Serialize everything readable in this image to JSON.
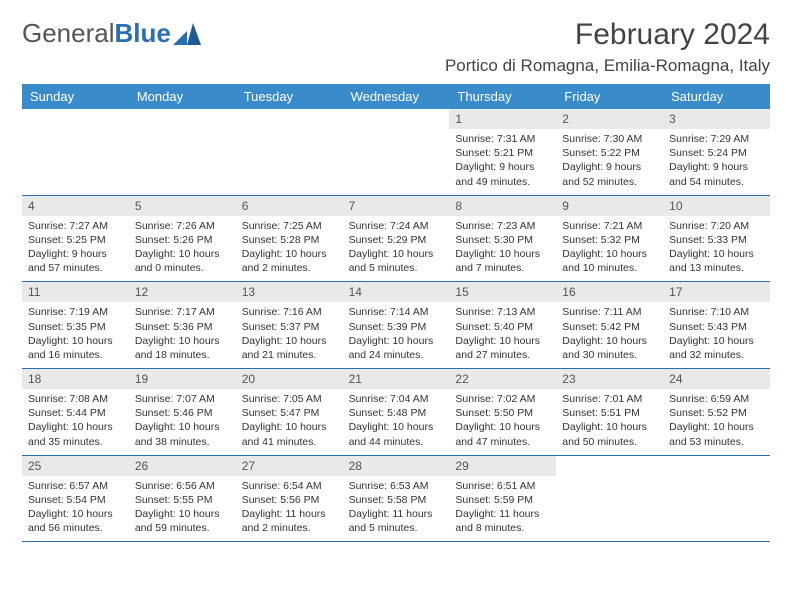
{
  "logo": {
    "word1": "General",
    "word2": "Blue"
  },
  "header": {
    "month_title": "February 2024",
    "location": "Portico di Romagna, Emilia-Romagna, Italy"
  },
  "colors": {
    "header_bg": "#3a8bc9",
    "rule": "#2a6fb5",
    "daynum_bg": "#e9e9e9"
  },
  "day_names": [
    "Sunday",
    "Monday",
    "Tuesday",
    "Wednesday",
    "Thursday",
    "Friday",
    "Saturday"
  ],
  "weeks": [
    [
      {
        "n": "",
        "sr": "",
        "ss": "",
        "dl1": "",
        "dl2": ""
      },
      {
        "n": "",
        "sr": "",
        "ss": "",
        "dl1": "",
        "dl2": ""
      },
      {
        "n": "",
        "sr": "",
        "ss": "",
        "dl1": "",
        "dl2": ""
      },
      {
        "n": "",
        "sr": "",
        "ss": "",
        "dl1": "",
        "dl2": ""
      },
      {
        "n": "1",
        "sr": "Sunrise: 7:31 AM",
        "ss": "Sunset: 5:21 PM",
        "dl1": "Daylight: 9 hours",
        "dl2": "and 49 minutes."
      },
      {
        "n": "2",
        "sr": "Sunrise: 7:30 AM",
        "ss": "Sunset: 5:22 PM",
        "dl1": "Daylight: 9 hours",
        "dl2": "and 52 minutes."
      },
      {
        "n": "3",
        "sr": "Sunrise: 7:29 AM",
        "ss": "Sunset: 5:24 PM",
        "dl1": "Daylight: 9 hours",
        "dl2": "and 54 minutes."
      }
    ],
    [
      {
        "n": "4",
        "sr": "Sunrise: 7:27 AM",
        "ss": "Sunset: 5:25 PM",
        "dl1": "Daylight: 9 hours",
        "dl2": "and 57 minutes."
      },
      {
        "n": "5",
        "sr": "Sunrise: 7:26 AM",
        "ss": "Sunset: 5:26 PM",
        "dl1": "Daylight: 10 hours",
        "dl2": "and 0 minutes."
      },
      {
        "n": "6",
        "sr": "Sunrise: 7:25 AM",
        "ss": "Sunset: 5:28 PM",
        "dl1": "Daylight: 10 hours",
        "dl2": "and 2 minutes."
      },
      {
        "n": "7",
        "sr": "Sunrise: 7:24 AM",
        "ss": "Sunset: 5:29 PM",
        "dl1": "Daylight: 10 hours",
        "dl2": "and 5 minutes."
      },
      {
        "n": "8",
        "sr": "Sunrise: 7:23 AM",
        "ss": "Sunset: 5:30 PM",
        "dl1": "Daylight: 10 hours",
        "dl2": "and 7 minutes."
      },
      {
        "n": "9",
        "sr": "Sunrise: 7:21 AM",
        "ss": "Sunset: 5:32 PM",
        "dl1": "Daylight: 10 hours",
        "dl2": "and 10 minutes."
      },
      {
        "n": "10",
        "sr": "Sunrise: 7:20 AM",
        "ss": "Sunset: 5:33 PM",
        "dl1": "Daylight: 10 hours",
        "dl2": "and 13 minutes."
      }
    ],
    [
      {
        "n": "11",
        "sr": "Sunrise: 7:19 AM",
        "ss": "Sunset: 5:35 PM",
        "dl1": "Daylight: 10 hours",
        "dl2": "and 16 minutes."
      },
      {
        "n": "12",
        "sr": "Sunrise: 7:17 AM",
        "ss": "Sunset: 5:36 PM",
        "dl1": "Daylight: 10 hours",
        "dl2": "and 18 minutes."
      },
      {
        "n": "13",
        "sr": "Sunrise: 7:16 AM",
        "ss": "Sunset: 5:37 PM",
        "dl1": "Daylight: 10 hours",
        "dl2": "and 21 minutes."
      },
      {
        "n": "14",
        "sr": "Sunrise: 7:14 AM",
        "ss": "Sunset: 5:39 PM",
        "dl1": "Daylight: 10 hours",
        "dl2": "and 24 minutes."
      },
      {
        "n": "15",
        "sr": "Sunrise: 7:13 AM",
        "ss": "Sunset: 5:40 PM",
        "dl1": "Daylight: 10 hours",
        "dl2": "and 27 minutes."
      },
      {
        "n": "16",
        "sr": "Sunrise: 7:11 AM",
        "ss": "Sunset: 5:42 PM",
        "dl1": "Daylight: 10 hours",
        "dl2": "and 30 minutes."
      },
      {
        "n": "17",
        "sr": "Sunrise: 7:10 AM",
        "ss": "Sunset: 5:43 PM",
        "dl1": "Daylight: 10 hours",
        "dl2": "and 32 minutes."
      }
    ],
    [
      {
        "n": "18",
        "sr": "Sunrise: 7:08 AM",
        "ss": "Sunset: 5:44 PM",
        "dl1": "Daylight: 10 hours",
        "dl2": "and 35 minutes."
      },
      {
        "n": "19",
        "sr": "Sunrise: 7:07 AM",
        "ss": "Sunset: 5:46 PM",
        "dl1": "Daylight: 10 hours",
        "dl2": "and 38 minutes."
      },
      {
        "n": "20",
        "sr": "Sunrise: 7:05 AM",
        "ss": "Sunset: 5:47 PM",
        "dl1": "Daylight: 10 hours",
        "dl2": "and 41 minutes."
      },
      {
        "n": "21",
        "sr": "Sunrise: 7:04 AM",
        "ss": "Sunset: 5:48 PM",
        "dl1": "Daylight: 10 hours",
        "dl2": "and 44 minutes."
      },
      {
        "n": "22",
        "sr": "Sunrise: 7:02 AM",
        "ss": "Sunset: 5:50 PM",
        "dl1": "Daylight: 10 hours",
        "dl2": "and 47 minutes."
      },
      {
        "n": "23",
        "sr": "Sunrise: 7:01 AM",
        "ss": "Sunset: 5:51 PM",
        "dl1": "Daylight: 10 hours",
        "dl2": "and 50 minutes."
      },
      {
        "n": "24",
        "sr": "Sunrise: 6:59 AM",
        "ss": "Sunset: 5:52 PM",
        "dl1": "Daylight: 10 hours",
        "dl2": "and 53 minutes."
      }
    ],
    [
      {
        "n": "25",
        "sr": "Sunrise: 6:57 AM",
        "ss": "Sunset: 5:54 PM",
        "dl1": "Daylight: 10 hours",
        "dl2": "and 56 minutes."
      },
      {
        "n": "26",
        "sr": "Sunrise: 6:56 AM",
        "ss": "Sunset: 5:55 PM",
        "dl1": "Daylight: 10 hours",
        "dl2": "and 59 minutes."
      },
      {
        "n": "27",
        "sr": "Sunrise: 6:54 AM",
        "ss": "Sunset: 5:56 PM",
        "dl1": "Daylight: 11 hours",
        "dl2": "and 2 minutes."
      },
      {
        "n": "28",
        "sr": "Sunrise: 6:53 AM",
        "ss": "Sunset: 5:58 PM",
        "dl1": "Daylight: 11 hours",
        "dl2": "and 5 minutes."
      },
      {
        "n": "29",
        "sr": "Sunrise: 6:51 AM",
        "ss": "Sunset: 5:59 PM",
        "dl1": "Daylight: 11 hours",
        "dl2": "and 8 minutes."
      },
      {
        "n": "",
        "sr": "",
        "ss": "",
        "dl1": "",
        "dl2": ""
      },
      {
        "n": "",
        "sr": "",
        "ss": "",
        "dl1": "",
        "dl2": ""
      }
    ]
  ]
}
